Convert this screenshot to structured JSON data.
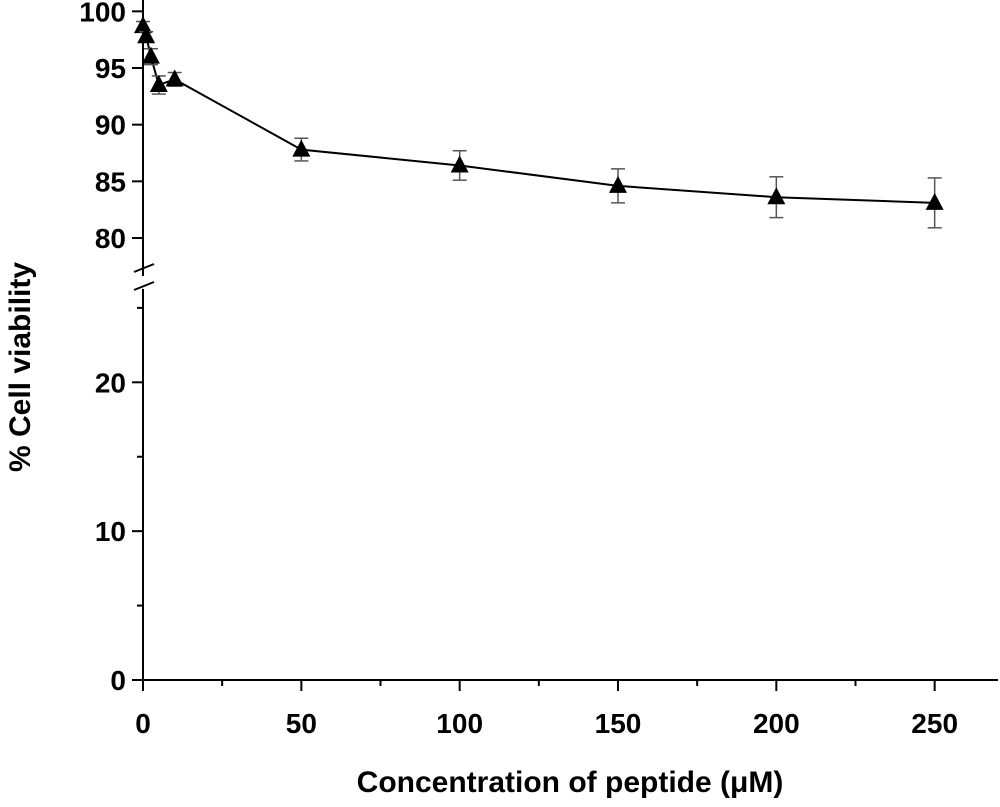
{
  "chart_data": {
    "type": "line",
    "title": "",
    "xlabel": "Concentration of peptide (μM)",
    "ylabel": "% Cell viability",
    "xlim": [
      0,
      270
    ],
    "ylim_lower": [
      0,
      26
    ],
    "ylim_upper": [
      77,
      101
    ],
    "y_axis_break": [
      26,
      77
    ],
    "x_ticks": [
      0,
      50,
      100,
      150,
      200,
      250
    ],
    "y_ticks_lower": [
      0,
      10,
      20
    ],
    "y_ticks_upper": [
      80,
      85,
      90,
      95,
      100
    ],
    "marker": "filled-triangle",
    "grid": false,
    "legend": "none",
    "series": [
      {
        "x": [
          0,
          1,
          2.5,
          5,
          10,
          50,
          100,
          150,
          200,
          250
        ],
        "y": [
          98.7,
          97.8,
          96.0,
          93.5,
          94.0,
          87.8,
          86.4,
          84.6,
          83.6,
          83.1
        ],
        "error": [
          0.4,
          0.4,
          0.7,
          0.8,
          0.6,
          1.0,
          1.3,
          1.5,
          1.8,
          2.2
        ]
      }
    ]
  }
}
